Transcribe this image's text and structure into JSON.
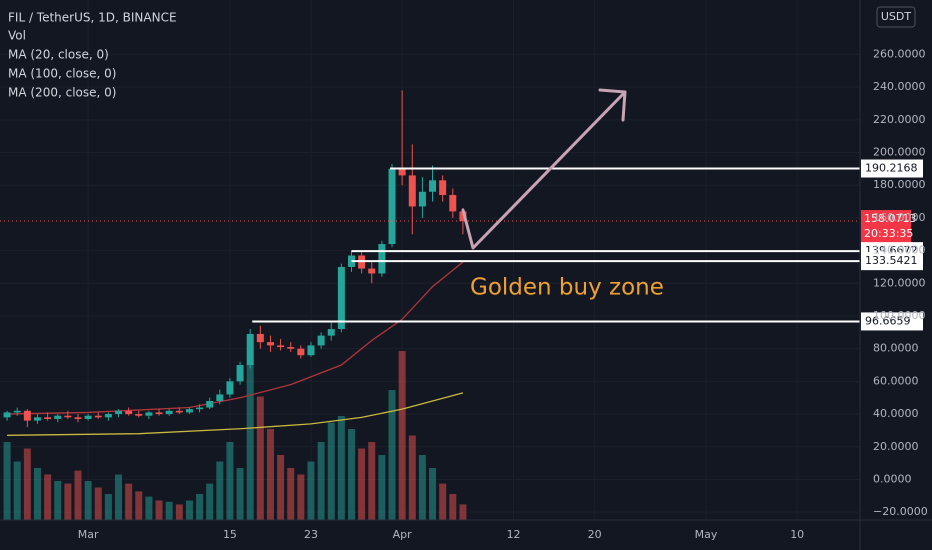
{
  "chart_data": {
    "type": "candlestick",
    "title": "FIL / TetherUS, 1D, BINANCE",
    "indicators": [
      "Vol",
      "MA (20, close, 0)",
      "MA (100, close, 0)",
      "MA (200, close, 0)"
    ],
    "currency": "USDT",
    "xlim": [
      -8.7,
      76.2
    ],
    "xticks": [
      {
        "value": 0,
        "label": "Mar"
      },
      {
        "value": 14,
        "label": "15"
      },
      {
        "value": 22,
        "label": "23"
      },
      {
        "value": 31,
        "label": "Apr"
      },
      {
        "value": 42,
        "label": "12"
      },
      {
        "value": 50,
        "label": "20"
      },
      {
        "value": 61,
        "label": "May"
      },
      {
        "value": 70,
        "label": "10"
      }
    ],
    "ylim": [
      -24.8,
      293.3
    ],
    "yticks": [
      {
        "value": -20,
        "label": "−20.0000"
      },
      {
        "value": 0,
        "label": "0.0000"
      },
      {
        "value": 20,
        "label": "20.0000"
      },
      {
        "value": 40,
        "label": "40.0000"
      },
      {
        "value": 60,
        "label": "60.0000"
      },
      {
        "value": 80,
        "label": "80.0000"
      },
      {
        "value": 100,
        "label": "100.0000"
      },
      {
        "value": 120,
        "label": "120.0000"
      },
      {
        "value": 140,
        "label": "140.0000"
      },
      {
        "value": 160,
        "label": "160.0000"
      },
      {
        "value": 180,
        "label": "180.0000"
      },
      {
        "value": 200,
        "label": "200.0000"
      },
      {
        "value": 220,
        "label": "220.0000"
      },
      {
        "value": 240,
        "label": "240.0000"
      },
      {
        "value": 260,
        "label": "260.0000"
      }
    ],
    "grid": true,
    "up_color": "#26a69a",
    "down_color": "#ef5350",
    "x": [
      -8,
      -7,
      -6,
      -5,
      -4,
      -3,
      -2,
      -1,
      0,
      1,
      2,
      3,
      4,
      5,
      6,
      7,
      8,
      9,
      10,
      11,
      12,
      13,
      14,
      15,
      16,
      17,
      18,
      19,
      20,
      21,
      22,
      23,
      24,
      25,
      26,
      27,
      28,
      29,
      30,
      31,
      32,
      33,
      34,
      35,
      36,
      37
    ],
    "open": [
      38,
      41,
      42,
      36,
      38,
      37,
      39,
      38,
      37,
      39,
      38,
      40,
      42,
      40,
      39,
      41,
      40,
      42,
      41,
      43,
      44,
      48,
      52,
      60,
      70,
      89,
      84,
      82,
      81,
      80,
      76,
      82,
      88,
      92,
      130,
      137,
      129,
      126,
      144,
      190,
      186,
      167,
      176,
      183,
      174,
      164
    ],
    "high": [
      42,
      44,
      43,
      40,
      41,
      40,
      42,
      40,
      40,
      41,
      41,
      43,
      44,
      42,
      42,
      43,
      43,
      44,
      44,
      46,
      50,
      55,
      62,
      72,
      92,
      94,
      88,
      86,
      84,
      82,
      84,
      90,
      96,
      132,
      140,
      139,
      133,
      146,
      193,
      238,
      205,
      185,
      192,
      186,
      178,
      166
    ],
    "low": [
      36,
      39,
      32,
      34,
      36,
      35,
      37,
      35,
      36,
      37,
      36,
      38,
      39,
      38,
      37,
      39,
      39,
      40,
      40,
      41,
      43,
      46,
      50,
      58,
      68,
      80,
      78,
      79,
      78,
      74,
      75,
      80,
      85,
      90,
      127,
      126,
      120,
      124,
      142,
      180,
      150,
      160,
      170,
      170,
      160,
      150
    ],
    "close": [
      41,
      42,
      36,
      38,
      37,
      39,
      38,
      37,
      39,
      38,
      40,
      42,
      40,
      39,
      41,
      40,
      42,
      41,
      43,
      44,
      48,
      52,
      60,
      70,
      89,
      84,
      82,
      81,
      80,
      76,
      82,
      88,
      92,
      130,
      137,
      129,
      126,
      144,
      190,
      186,
      167,
      176,
      183,
      174,
      164,
      158
    ],
    "volume": [
      60,
      45,
      55,
      40,
      35,
      30,
      28,
      38,
      30,
      25,
      20,
      35,
      28,
      22,
      18,
      15,
      14,
      12,
      15,
      20,
      28,
      45,
      60,
      40,
      120,
      95,
      70,
      50,
      40,
      35,
      45,
      60,
      75,
      80,
      70,
      55,
      60,
      50,
      100,
      130,
      65,
      50,
      40,
      28,
      20,
      12
    ],
    "volume_lim": [
      0,
      400
    ],
    "ma_lines": [
      {
        "color": "#b2363a",
        "x": [
          -8,
          0,
          10,
          15,
          20,
          25,
          28,
          31,
          34,
          37
        ],
        "values": [
          40,
          41,
          44,
          50,
          58,
          70,
          85,
          98,
          118,
          133
        ]
      },
      {
        "color": "#c9b93f",
        "x": [
          -8,
          5,
          15,
          22,
          27,
          31,
          34,
          37
        ],
        "values": [
          27,
          28,
          31,
          34,
          38,
          43,
          48,
          53
        ]
      }
    ],
    "levels": [
      {
        "value": 190.2168,
        "label": "190.2168",
        "x_start": 29.8
      },
      {
        "value": 139.6672,
        "label": "139.6672",
        "x_start": 26
      },
      {
        "value": 133.5421,
        "label": "133.5421",
        "x_start": 26
      },
      {
        "value": 96.6659,
        "label": "96.6659",
        "x_start": 16.2
      }
    ],
    "last_price": {
      "value": 158.0713,
      "label": "158.0713",
      "countdown": "20:33:35"
    },
    "annotation": "Golden buy zone"
  }
}
